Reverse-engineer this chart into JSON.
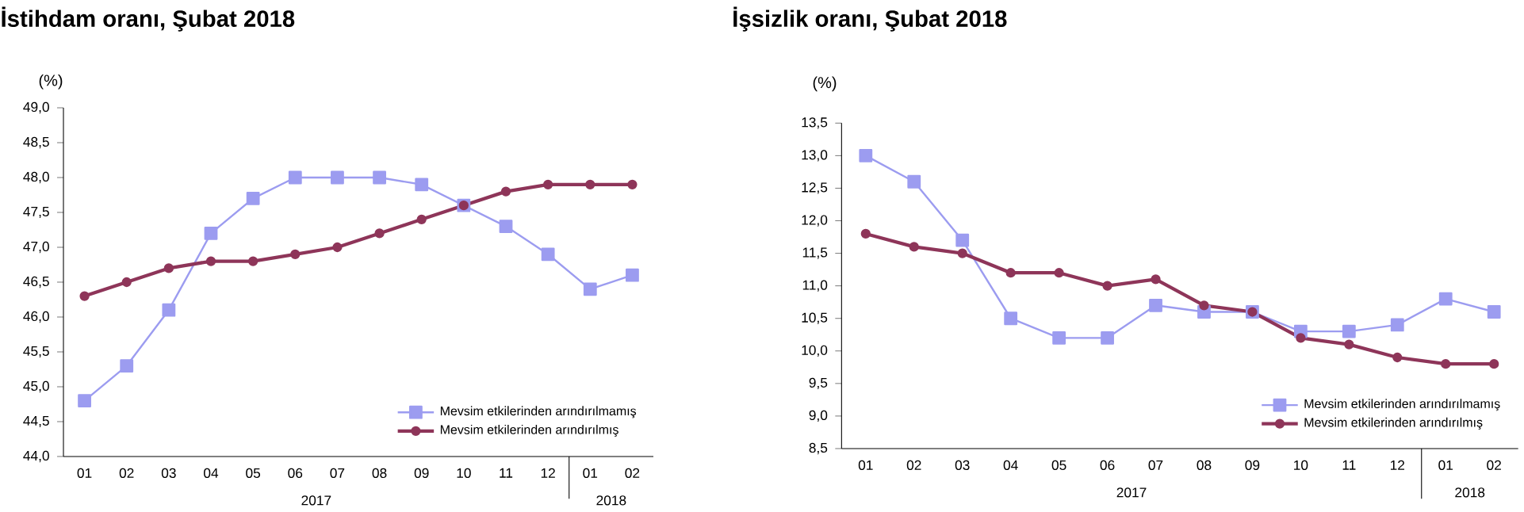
{
  "chart_data": [
    {
      "type": "line",
      "title": "İstihdam oranı, Şubat 2018",
      "ylabel": "(%)",
      "categories": [
        "01",
        "02",
        "03",
        "04",
        "05",
        "06",
        "07",
        "08",
        "09",
        "10",
        "11",
        "12",
        "01",
        "02"
      ],
      "series": [
        {
          "name": "Mevsim etkilerinden arındırılmamış",
          "color": "#9c9cf0",
          "marker": "square",
          "values": [
            44.8,
            45.3,
            46.1,
            47.2,
            47.7,
            48.0,
            48.0,
            48.0,
            47.9,
            47.6,
            47.3,
            46.9,
            46.4,
            46.6
          ]
        },
        {
          "name": "Mevsim etkilerinden arındırılmış",
          "color": "#8e3559",
          "marker": "circle",
          "values": [
            46.3,
            46.5,
            46.7,
            46.8,
            46.8,
            46.9,
            47.0,
            47.2,
            47.4,
            47.6,
            47.8,
            47.9,
            47.9,
            47.9
          ]
        }
      ],
      "ylim": [
        44.0,
        49.0
      ],
      "yticks": [
        {
          "value": 44.0,
          "label": "44,0"
        },
        {
          "value": 44.5,
          "label": "44,5"
        },
        {
          "value": 45.0,
          "label": "45,0"
        },
        {
          "value": 45.5,
          "label": "45,5"
        },
        {
          "value": 46.0,
          "label": "46,0"
        },
        {
          "value": 46.5,
          "label": "46,5"
        },
        {
          "value": 47.0,
          "label": "47,0"
        },
        {
          "value": 47.5,
          "label": "47,5"
        },
        {
          "value": 48.0,
          "label": "48,0"
        },
        {
          "value": 48.5,
          "label": "48,5"
        },
        {
          "value": 49.0,
          "label": "49,0"
        }
      ],
      "annotations": [
        "2017",
        "2018"
      ],
      "legend": "bottom right",
      "grid": false
    },
    {
      "type": "line",
      "title": "İşsizlik oranı, Şubat 2018",
      "ylabel": "(%)",
      "categories": [
        "01",
        "02",
        "03",
        "04",
        "05",
        "06",
        "07",
        "08",
        "09",
        "10",
        "11",
        "12",
        "01",
        "02"
      ],
      "series": [
        {
          "name": "Mevsim etkilerinden arındırılmamış",
          "color": "#9c9cf0",
          "marker": "square",
          "values": [
            13.0,
            12.6,
            11.7,
            10.5,
            10.2,
            10.2,
            10.7,
            10.6,
            10.6,
            10.3,
            10.3,
            10.4,
            10.8,
            10.6
          ]
        },
        {
          "name": "Mevsim etkilerinden arındırılmış",
          "color": "#8e3559",
          "marker": "circle",
          "values": [
            11.8,
            11.6,
            11.5,
            11.2,
            11.2,
            11.0,
            11.1,
            10.7,
            10.6,
            10.2,
            10.1,
            9.9,
            9.8,
            9.8
          ]
        }
      ],
      "ylim": [
        8.5,
        13.5
      ],
      "yticks": [
        {
          "value": 8.5,
          "label": "8,5"
        },
        {
          "value": 9.0,
          "label": "9,0"
        },
        {
          "value": 9.5,
          "label": "9,5"
        },
        {
          "value": 10.0,
          "label": "10,0"
        },
        {
          "value": 10.5,
          "label": "10,5"
        },
        {
          "value": 11.0,
          "label": "11,0"
        },
        {
          "value": 11.5,
          "label": "11,5"
        },
        {
          "value": 12.0,
          "label": "12,0"
        },
        {
          "value": 12.5,
          "label": "12,5"
        },
        {
          "value": 13.0,
          "label": "13,0"
        },
        {
          "value": 13.5,
          "label": "13,5"
        }
      ],
      "annotations": [
        "2017",
        "2018"
      ],
      "legend": "bottom right",
      "grid": false
    }
  ]
}
